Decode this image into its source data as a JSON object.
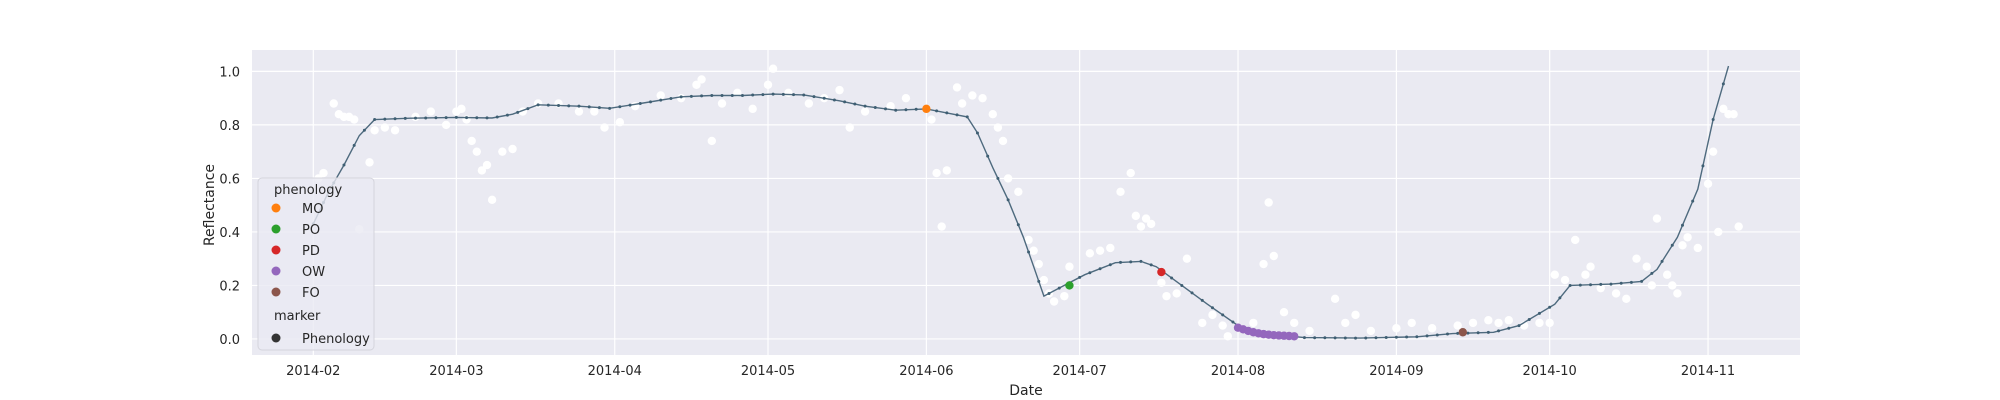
{
  "chart_data": {
    "type": "scatter",
    "title": "",
    "xlabel": "Date",
    "ylabel": "Reflectance",
    "x_tick_labels": [
      "2014-02",
      "2014-03",
      "2014-04",
      "2014-05",
      "2014-06",
      "2014-07",
      "2014-08",
      "2014-09",
      "2014-10",
      "2014-11"
    ],
    "x_tick_dates": [
      "2014-02-01",
      "2014-03-01",
      "2014-04-01",
      "2014-05-01",
      "2014-06-01",
      "2014-07-01",
      "2014-08-01",
      "2014-09-01",
      "2014-10-01",
      "2014-11-01"
    ],
    "xlim": [
      "2014-01-20",
      "2014-11-19"
    ],
    "ylim": [
      -0.06,
      1.08
    ],
    "y_ticks": [
      0.0,
      0.2,
      0.4,
      0.6,
      0.8,
      1.0
    ],
    "y_tick_labels": [
      "0.0",
      "0.2",
      "0.4",
      "0.6",
      "0.8",
      "1.0"
    ],
    "grid": true,
    "legend_position": "bottom-left",
    "colors": {
      "background": "#eaeaf2",
      "grid": "#ffffff",
      "observed": "#ffffff",
      "fitted_line": "#4e6a7e",
      "MO": "#ff7f0e",
      "PO": "#2ca02c",
      "PD": "#d62728",
      "OW": "#9467bd",
      "FO": "#8c564b",
      "marker": "#333333"
    },
    "legend": {
      "hue_title": "phenology",
      "hue_entries": [
        "MO",
        "PO",
        "PD",
        "OW",
        "FO"
      ],
      "marker_title": "marker",
      "marker_entries": [
        "Phenology"
      ]
    },
    "series": [
      {
        "kind": "fitted-curve",
        "points": [
          [
            "2014-02-01",
            0.43
          ],
          [
            "2014-02-04",
            0.55
          ],
          [
            "2014-02-07",
            0.65
          ],
          [
            "2014-02-10",
            0.76
          ],
          [
            "2014-02-13",
            0.82
          ],
          [
            "2014-02-20",
            0.825
          ],
          [
            "2014-03-01",
            0.828
          ],
          [
            "2014-03-08",
            0.826
          ],
          [
            "2014-03-12",
            0.84
          ],
          [
            "2014-03-17",
            0.875
          ],
          [
            "2014-03-25",
            0.87
          ],
          [
            "2014-03-31",
            0.862
          ],
          [
            "2014-04-06",
            0.88
          ],
          [
            "2014-04-14",
            0.905
          ],
          [
            "2014-04-20",
            0.91
          ],
          [
            "2014-04-26",
            0.91
          ],
          [
            "2014-05-02",
            0.915
          ],
          [
            "2014-05-08",
            0.912
          ],
          [
            "2014-05-15",
            0.89
          ],
          [
            "2014-05-20",
            0.87
          ],
          [
            "2014-05-26",
            0.855
          ],
          [
            "2014-06-01",
            0.86
          ],
          [
            "2014-06-05",
            0.845
          ],
          [
            "2014-06-09",
            0.83
          ],
          [
            "2014-06-11",
            0.77
          ],
          [
            "2014-06-14",
            0.64
          ],
          [
            "2014-06-17",
            0.52
          ],
          [
            "2014-06-20",
            0.38
          ],
          [
            "2014-06-22",
            0.27
          ],
          [
            "2014-06-24",
            0.16
          ],
          [
            "2014-06-28",
            0.2
          ],
          [
            "2014-07-02",
            0.24
          ],
          [
            "2014-07-08",
            0.285
          ],
          [
            "2014-07-13",
            0.29
          ],
          [
            "2014-07-16",
            0.27
          ],
          [
            "2014-07-21",
            0.2
          ],
          [
            "2014-07-26",
            0.13
          ],
          [
            "2014-08-01",
            0.05
          ],
          [
            "2014-08-06",
            0.02
          ],
          [
            "2014-08-14",
            0.005
          ],
          [
            "2014-08-25",
            0.003
          ],
          [
            "2014-09-05",
            0.008
          ],
          [
            "2014-09-12",
            0.02
          ],
          [
            "2014-09-20",
            0.025
          ],
          [
            "2014-09-25",
            0.05
          ],
          [
            "2014-10-02",
            0.13
          ],
          [
            "2014-10-05",
            0.2
          ],
          [
            "2014-10-13",
            0.205
          ],
          [
            "2014-10-19",
            0.215
          ],
          [
            "2014-10-22",
            0.26
          ],
          [
            "2014-10-26",
            0.38
          ],
          [
            "2014-10-30",
            0.56
          ],
          [
            "2014-11-02",
            0.82
          ],
          [
            "2014-11-05",
            1.02
          ]
        ]
      },
      {
        "kind": "observed",
        "points": [
          [
            "2014-02-02",
            0.6
          ],
          [
            "2014-02-03",
            0.62
          ],
          [
            "2014-02-05",
            0.88
          ],
          [
            "2014-02-06",
            0.84
          ],
          [
            "2014-02-07",
            0.83
          ],
          [
            "2014-02-08",
            0.83
          ],
          [
            "2014-02-09",
            0.82
          ],
          [
            "2014-02-10",
            0.41
          ],
          [
            "2014-02-12",
            0.66
          ],
          [
            "2014-02-13",
            0.78
          ],
          [
            "2014-02-15",
            0.79
          ],
          [
            "2014-02-17",
            0.78
          ],
          [
            "2014-02-21",
            0.83
          ],
          [
            "2014-02-24",
            0.85
          ],
          [
            "2014-02-27",
            0.8
          ],
          [
            "2014-03-01",
            0.85
          ],
          [
            "2014-03-02",
            0.86
          ],
          [
            "2014-03-03",
            0.82
          ],
          [
            "2014-03-04",
            0.74
          ],
          [
            "2014-03-05",
            0.7
          ],
          [
            "2014-03-06",
            0.63
          ],
          [
            "2014-03-07",
            0.65
          ],
          [
            "2014-03-08",
            0.52
          ],
          [
            "2014-03-10",
            0.7
          ],
          [
            "2014-03-12",
            0.71
          ],
          [
            "2014-03-14",
            0.85
          ],
          [
            "2014-03-17",
            0.88
          ],
          [
            "2014-03-21",
            0.88
          ],
          [
            "2014-03-25",
            0.85
          ],
          [
            "2014-03-28",
            0.85
          ],
          [
            "2014-03-30",
            0.79
          ],
          [
            "2014-04-02",
            0.81
          ],
          [
            "2014-04-05",
            0.87
          ],
          [
            "2014-04-10",
            0.91
          ],
          [
            "2014-04-14",
            0.9
          ],
          [
            "2014-04-17",
            0.95
          ],
          [
            "2014-04-18",
            0.97
          ],
          [
            "2014-04-20",
            0.74
          ],
          [
            "2014-04-22",
            0.88
          ],
          [
            "2014-04-25",
            0.92
          ],
          [
            "2014-04-28",
            0.86
          ],
          [
            "2014-05-01",
            0.95
          ],
          [
            "2014-05-02",
            1.01
          ],
          [
            "2014-05-05",
            0.92
          ],
          [
            "2014-05-09",
            0.88
          ],
          [
            "2014-05-12",
            0.9
          ],
          [
            "2014-05-15",
            0.93
          ],
          [
            "2014-05-17",
            0.79
          ],
          [
            "2014-05-20",
            0.85
          ],
          [
            "2014-05-25",
            0.87
          ],
          [
            "2014-05-28",
            0.9
          ],
          [
            "2014-06-02",
            0.82
          ],
          [
            "2014-06-03",
            0.62
          ],
          [
            "2014-06-04",
            0.42
          ],
          [
            "2014-06-05",
            0.63
          ],
          [
            "2014-06-07",
            0.94
          ],
          [
            "2014-06-08",
            0.88
          ],
          [
            "2014-06-10",
            0.91
          ],
          [
            "2014-06-12",
            0.9
          ],
          [
            "2014-06-14",
            0.84
          ],
          [
            "2014-06-15",
            0.79
          ],
          [
            "2014-06-16",
            0.74
          ],
          [
            "2014-06-17",
            0.6
          ],
          [
            "2014-06-19",
            0.55
          ],
          [
            "2014-06-21",
            0.37
          ],
          [
            "2014-06-22",
            0.33
          ],
          [
            "2014-06-23",
            0.28
          ],
          [
            "2014-06-24",
            0.22
          ],
          [
            "2014-06-25",
            0.17
          ],
          [
            "2014-06-26",
            0.14
          ],
          [
            "2014-06-28",
            0.16
          ],
          [
            "2014-06-29",
            0.27
          ],
          [
            "2014-07-03",
            0.32
          ],
          [
            "2014-07-05",
            0.33
          ],
          [
            "2014-07-07",
            0.34
          ],
          [
            "2014-07-09",
            0.55
          ],
          [
            "2014-07-11",
            0.62
          ],
          [
            "2014-07-12",
            0.46
          ],
          [
            "2014-07-13",
            0.42
          ],
          [
            "2014-07-14",
            0.45
          ],
          [
            "2014-07-15",
            0.43
          ],
          [
            "2014-07-17",
            0.21
          ],
          [
            "2014-07-18",
            0.16
          ],
          [
            "2014-07-20",
            0.17
          ],
          [
            "2014-07-22",
            0.3
          ],
          [
            "2014-07-25",
            0.06
          ],
          [
            "2014-07-27",
            0.09
          ],
          [
            "2014-07-29",
            0.05
          ],
          [
            "2014-07-30",
            0.01
          ],
          [
            "2014-08-04",
            0.06
          ],
          [
            "2014-08-06",
            0.28
          ],
          [
            "2014-08-07",
            0.51
          ],
          [
            "2014-08-08",
            0.31
          ],
          [
            "2014-08-10",
            0.1
          ],
          [
            "2014-08-12",
            0.06
          ],
          [
            "2014-08-15",
            0.03
          ],
          [
            "2014-08-20",
            0.15
          ],
          [
            "2014-08-22",
            0.06
          ],
          [
            "2014-08-24",
            0.09
          ],
          [
            "2014-08-27",
            0.03
          ],
          [
            "2014-09-01",
            0.04
          ],
          [
            "2014-09-04",
            0.06
          ],
          [
            "2014-09-08",
            0.04
          ],
          [
            "2014-09-13",
            0.05
          ],
          [
            "2014-09-16",
            0.06
          ],
          [
            "2014-09-19",
            0.07
          ],
          [
            "2014-09-21",
            0.06
          ],
          [
            "2014-09-23",
            0.07
          ],
          [
            "2014-09-26",
            0.05
          ],
          [
            "2014-09-29",
            0.06
          ],
          [
            "2014-10-01",
            0.06
          ],
          [
            "2014-10-02",
            0.24
          ],
          [
            "2014-10-04",
            0.22
          ],
          [
            "2014-10-06",
            0.37
          ],
          [
            "2014-10-08",
            0.24
          ],
          [
            "2014-10-09",
            0.27
          ],
          [
            "2014-10-11",
            0.19
          ],
          [
            "2014-10-14",
            0.17
          ],
          [
            "2014-10-16",
            0.15
          ],
          [
            "2014-10-18",
            0.3
          ],
          [
            "2014-10-20",
            0.27
          ],
          [
            "2014-10-21",
            0.2
          ],
          [
            "2014-10-22",
            0.45
          ],
          [
            "2014-10-24",
            0.24
          ],
          [
            "2014-10-25",
            0.2
          ],
          [
            "2014-10-26",
            0.17
          ],
          [
            "2014-10-27",
            0.35
          ],
          [
            "2014-10-28",
            0.38
          ],
          [
            "2014-10-30",
            0.34
          ],
          [
            "2014-11-01",
            0.58
          ],
          [
            "2014-11-02",
            0.7
          ],
          [
            "2014-11-03",
            0.4
          ],
          [
            "2014-11-04",
            0.86
          ],
          [
            "2014-11-05",
            0.84
          ],
          [
            "2014-11-06",
            0.84
          ],
          [
            "2014-11-07",
            0.42
          ]
        ]
      },
      {
        "kind": "phenology",
        "points": [
          {
            "phenology": "MO",
            "date": "2014-06-01",
            "value": 0.86
          },
          {
            "phenology": "PO",
            "date": "2014-06-29",
            "value": 0.2
          },
          {
            "phenology": "PD",
            "date": "2014-07-17",
            "value": 0.25
          },
          {
            "phenology": "OW",
            "date": "2014-08-01",
            "value": 0.042
          },
          {
            "phenology": "OW",
            "date": "2014-08-02",
            "value": 0.036
          },
          {
            "phenology": "OW",
            "date": "2014-08-03",
            "value": 0.03
          },
          {
            "phenology": "OW",
            "date": "2014-08-04",
            "value": 0.025
          },
          {
            "phenology": "OW",
            "date": "2014-08-05",
            "value": 0.021
          },
          {
            "phenology": "OW",
            "date": "2014-08-06",
            "value": 0.018
          },
          {
            "phenology": "OW",
            "date": "2014-08-07",
            "value": 0.016
          },
          {
            "phenology": "OW",
            "date": "2014-08-08",
            "value": 0.014
          },
          {
            "phenology": "OW",
            "date": "2014-08-09",
            "value": 0.013
          },
          {
            "phenology": "OW",
            "date": "2014-08-10",
            "value": 0.012
          },
          {
            "phenology": "OW",
            "date": "2014-08-11",
            "value": 0.011
          },
          {
            "phenology": "OW",
            "date": "2014-08-12",
            "value": 0.01
          },
          {
            "phenology": "FO",
            "date": "2014-09-14",
            "value": 0.025
          }
        ]
      }
    ]
  }
}
